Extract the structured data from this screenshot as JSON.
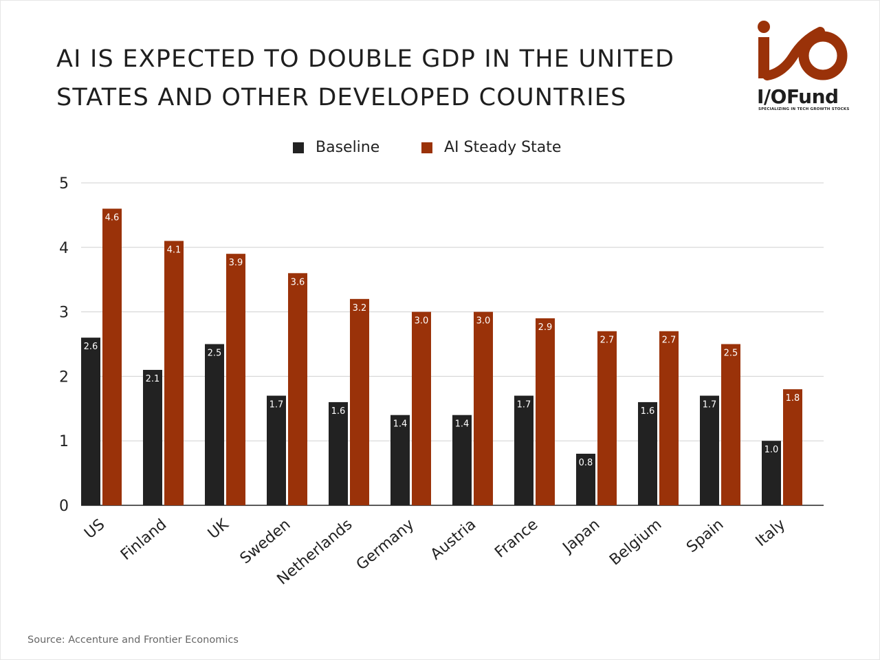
{
  "title_lines": [
    "AI IS EXPECTED TO DOUBLE GDP IN THE UNITED",
    "STATES AND OTHER DEVELOPED COUNTRIES"
  ],
  "logo": {
    "brand": "I/OFund",
    "tagline": "SPECIALIZING IN TECH GROWTH STOCKS",
    "accent_color": "#9a3209"
  },
  "source": "Source: Accenture and Frontier Economics",
  "chart_data": {
    "type": "bar",
    "title": "AI IS EXPECTED TO DOUBLE GDP IN THE UNITED STATES AND OTHER DEVELOPED COUNTRIES",
    "xlabel": "",
    "ylabel": "",
    "ylim": [
      0,
      5
    ],
    "yticks": [
      0,
      1,
      2,
      3,
      4,
      5
    ],
    "grid": true,
    "legend_position": "top-center",
    "categories": [
      "US",
      "Finland",
      "UK",
      "Sweden",
      "Netherlands",
      "Germany",
      "Austria",
      "France",
      "Japan",
      "Belgium",
      "Spain",
      "Italy"
    ],
    "series": [
      {
        "name": "Baseline",
        "color": "#222222",
        "values": [
          2.6,
          2.1,
          2.5,
          1.7,
          1.6,
          1.4,
          1.4,
          1.7,
          0.8,
          1.6,
          1.7,
          1.0
        ]
      },
      {
        "name": "AI Steady State",
        "color": "#9a3209",
        "values": [
          4.6,
          4.1,
          3.9,
          3.6,
          3.2,
          3.0,
          3.0,
          2.9,
          2.7,
          2.7,
          2.5,
          1.8
        ]
      }
    ]
  }
}
